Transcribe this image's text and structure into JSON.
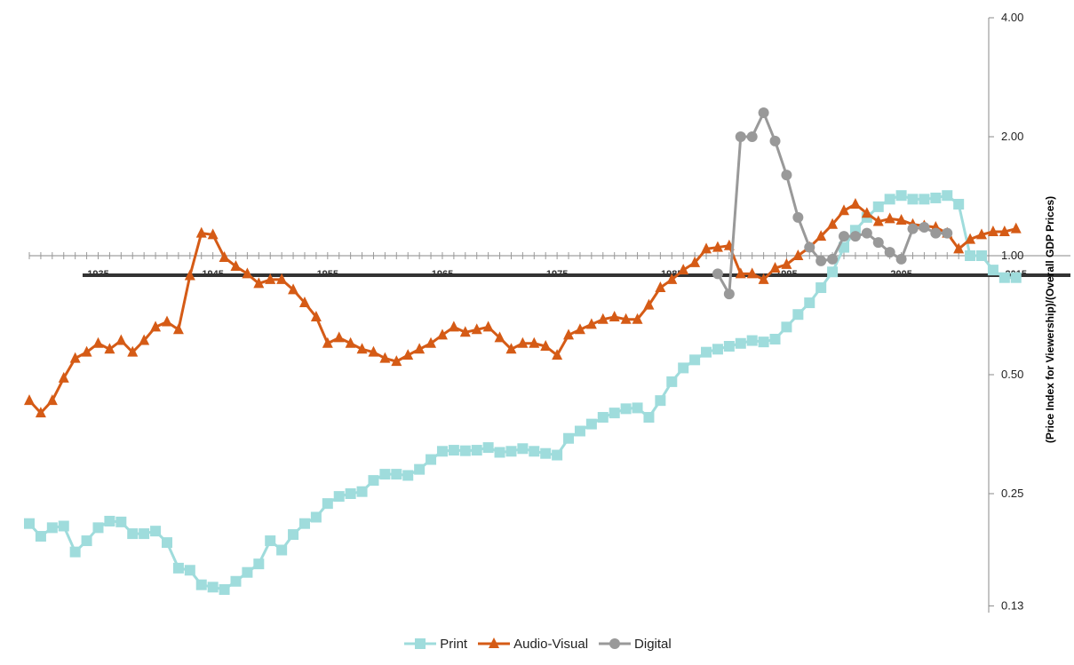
{
  "chart_data": {
    "type": "line",
    "title": "",
    "ylabel": "(Price Index for Viewership)/(Overall GDP Prices)",
    "y_scale": "log2",
    "ylim": [
      0.125,
      4.0
    ],
    "y_ticks": [
      0.13,
      0.25,
      0.5,
      1.0,
      2.0,
      4.0
    ],
    "y_tick_labels": [
      "0.13",
      "0.25",
      "0.50",
      "1.00",
      "2.00",
      "4.00"
    ],
    "xlim": [
      1929,
      2012
    ],
    "x_ticks": [
      1935,
      1945,
      1955,
      1965,
      1975,
      1985,
      1995,
      2005,
      2015
    ],
    "x_tick_labels": [
      "1935",
      "1945",
      "1955",
      "1965",
      "1975",
      "1985",
      "1995",
      "2005",
      "2015"
    ],
    "grid": false,
    "legend": "bottom",
    "series": [
      {
        "name": "Print",
        "color": "#9fdcdc",
        "marker": "square",
        "x_start": 1929,
        "values": [
          0.21,
          0.195,
          0.205,
          0.207,
          0.178,
          0.19,
          0.205,
          0.213,
          0.212,
          0.198,
          0.198,
          0.201,
          0.188,
          0.162,
          0.16,
          0.147,
          0.145,
          0.143,
          0.15,
          0.158,
          0.166,
          0.19,
          0.18,
          0.197,
          0.21,
          0.218,
          0.236,
          0.246,
          0.25,
          0.253,
          0.27,
          0.28,
          0.28,
          0.278,
          0.288,
          0.305,
          0.32,
          0.322,
          0.321,
          0.322,
          0.327,
          0.318,
          0.32,
          0.325,
          0.32,
          0.316,
          0.313,
          0.345,
          0.36,
          0.375,
          0.39,
          0.4,
          0.41,
          0.412,
          0.39,
          0.43,
          0.48,
          0.52,
          0.545,
          0.57,
          0.58,
          0.59,
          0.6,
          0.61,
          0.605,
          0.615,
          0.66,
          0.71,
          0.76,
          0.83,
          0.91,
          1.05,
          1.16,
          1.25,
          1.33,
          1.39,
          1.42,
          1.39,
          1.39,
          1.4,
          1.42,
          1.35,
          1.0,
          1.0,
          0.92,
          0.88,
          0.88
        ]
      },
      {
        "name": "Audio-Visual",
        "color": "#d55b16",
        "marker": "triangle",
        "x_start": 1929,
        "values": [
          0.43,
          0.4,
          0.43,
          0.49,
          0.55,
          0.57,
          0.6,
          0.58,
          0.61,
          0.57,
          0.61,
          0.66,
          0.68,
          0.65,
          0.89,
          1.14,
          1.13,
          0.99,
          0.94,
          0.9,
          0.85,
          0.87,
          0.87,
          0.82,
          0.76,
          0.7,
          0.6,
          0.62,
          0.6,
          0.58,
          0.57,
          0.55,
          0.54,
          0.56,
          0.58,
          0.6,
          0.63,
          0.66,
          0.64,
          0.65,
          0.66,
          0.62,
          0.58,
          0.6,
          0.6,
          0.59,
          0.56,
          0.63,
          0.65,
          0.67,
          0.69,
          0.7,
          0.69,
          0.69,
          0.75,
          0.83,
          0.87,
          0.92,
          0.96,
          1.04,
          1.05,
          1.06,
          0.9,
          0.9,
          0.87,
          0.93,
          0.95,
          1.0,
          1.05,
          1.12,
          1.2,
          1.3,
          1.35,
          1.28,
          1.22,
          1.24,
          1.23,
          1.2,
          1.19,
          1.18,
          1.14,
          1.04,
          1.1,
          1.13,
          1.15,
          1.15,
          1.17
        ]
      },
      {
        "name": "Digital",
        "color": "#999999",
        "marker": "circle",
        "x_start": 1989,
        "values": [
          0.9,
          0.8,
          2.0,
          2.0,
          2.3,
          1.95,
          1.6,
          1.25,
          1.05,
          0.97,
          0.98,
          1.12,
          1.12,
          1.14,
          1.08,
          1.02,
          0.98,
          1.17,
          1.18,
          1.14,
          1.14
        ]
      }
    ]
  }
}
